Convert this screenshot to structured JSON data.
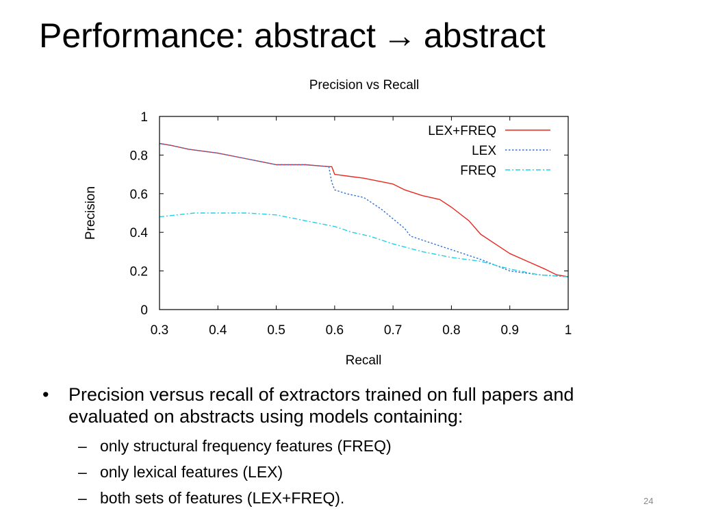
{
  "slide": {
    "title_left": "Performance: abstract",
    "title_arrow": "→",
    "title_right": "abstract",
    "page_number": "24"
  },
  "bullets": {
    "marker": "•",
    "main": "Precision versus recall of extractors trained on full papers and evaluated on abstracts using models containing:",
    "sub_marker": "–",
    "sub_items": [
      "only structural frequency features (FREQ)",
      "only lexical features (LEX)",
      "both sets of features (LEX+FREQ)."
    ]
  },
  "chart_data": {
    "type": "line",
    "title": "Precision vs Recall",
    "xlabel": "Recall",
    "ylabel": "Precision",
    "xlim": [
      0.3,
      1
    ],
    "ylim": [
      0,
      1
    ],
    "xticks": [
      "0.3",
      "0.4",
      "0.5",
      "0.6",
      "0.7",
      "0.8",
      "0.9",
      "1"
    ],
    "yticks": [
      "0",
      "0.2",
      "0.4",
      "0.6",
      "0.8",
      "1"
    ],
    "grid": false,
    "legend_position": "top-right",
    "series": [
      {
        "name": "LEX+FREQ",
        "color": "#e8271f",
        "style": "solid",
        "points": [
          [
            0.3,
            0.86
          ],
          [
            0.32,
            0.85
          ],
          [
            0.35,
            0.83
          ],
          [
            0.4,
            0.81
          ],
          [
            0.45,
            0.78
          ],
          [
            0.5,
            0.75
          ],
          [
            0.55,
            0.75
          ],
          [
            0.59,
            0.74
          ],
          [
            0.595,
            0.74
          ],
          [
            0.6,
            0.7
          ],
          [
            0.65,
            0.68
          ],
          [
            0.7,
            0.65
          ],
          [
            0.72,
            0.62
          ],
          [
            0.75,
            0.59
          ],
          [
            0.78,
            0.57
          ],
          [
            0.8,
            0.53
          ],
          [
            0.83,
            0.46
          ],
          [
            0.85,
            0.39
          ],
          [
            0.88,
            0.33
          ],
          [
            0.9,
            0.29
          ],
          [
            0.93,
            0.25
          ],
          [
            0.96,
            0.21
          ],
          [
            0.98,
            0.18
          ],
          [
            1.0,
            0.17
          ]
        ]
      },
      {
        "name": "LEX",
        "color": "#2f6fd6",
        "style": "dotted",
        "points": [
          [
            0.3,
            0.86
          ],
          [
            0.32,
            0.85
          ],
          [
            0.35,
            0.83
          ],
          [
            0.4,
            0.81
          ],
          [
            0.45,
            0.78
          ],
          [
            0.5,
            0.75
          ],
          [
            0.55,
            0.75
          ],
          [
            0.59,
            0.74
          ],
          [
            0.595,
            0.66
          ],
          [
            0.6,
            0.62
          ],
          [
            0.62,
            0.6
          ],
          [
            0.65,
            0.58
          ],
          [
            0.68,
            0.52
          ],
          [
            0.7,
            0.47
          ],
          [
            0.72,
            0.42
          ],
          [
            0.73,
            0.38
          ],
          [
            0.75,
            0.36
          ],
          [
            0.8,
            0.31
          ],
          [
            0.85,
            0.26
          ],
          [
            0.9,
            0.2
          ],
          [
            0.95,
            0.18
          ],
          [
            1.0,
            0.17
          ]
        ]
      },
      {
        "name": "FREQ",
        "color": "#1fd0e6",
        "style": "dashdot",
        "points": [
          [
            0.3,
            0.48
          ],
          [
            0.33,
            0.49
          ],
          [
            0.36,
            0.5
          ],
          [
            0.4,
            0.5
          ],
          [
            0.45,
            0.5
          ],
          [
            0.5,
            0.49
          ],
          [
            0.55,
            0.46
          ],
          [
            0.6,
            0.43
          ],
          [
            0.63,
            0.4
          ],
          [
            0.66,
            0.38
          ],
          [
            0.7,
            0.34
          ],
          [
            0.75,
            0.3
          ],
          [
            0.8,
            0.27
          ],
          [
            0.85,
            0.25
          ],
          [
            0.9,
            0.21
          ],
          [
            0.95,
            0.18
          ],
          [
            1.0,
            0.17
          ]
        ]
      }
    ]
  }
}
